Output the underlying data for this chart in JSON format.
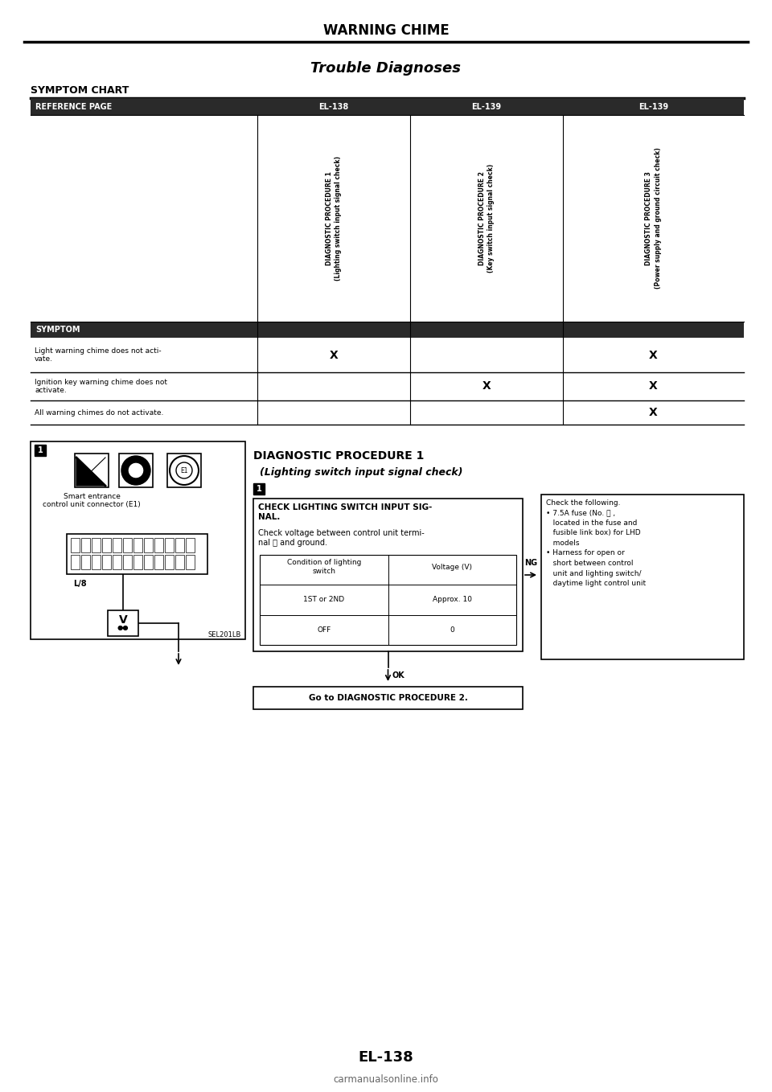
{
  "page_title": "WARNING CHIME",
  "section_title": "Trouble Diagnoses",
  "symptom_chart_label": "SYMPTOM CHART",
  "ref_page_label": "REFERENCE PAGE",
  "ref_pages": [
    "EL-138",
    "EL-139",
    "EL-139"
  ],
  "diag_proc_labels": [
    "DIAGNOSTIC PROCEDURE 1\n(Lighting switch input signal check)",
    "DIAGNOSTIC PROCEDURE 2\n(Key switch input signal check)",
    "DIAGNOSTIC PROCEDURE 3\n(Power supply and ground circuit check)"
  ],
  "symptom_label": "SYMPTOM",
  "symptoms": [
    "Light warning chime does not acti-\nvate.",
    "Ignition key warning chime does not\nactivate.",
    "All warning chimes do not activate."
  ],
  "x_marks": [
    [
      true,
      false,
      true
    ],
    [
      false,
      true,
      true
    ],
    [
      false,
      false,
      true
    ]
  ],
  "page_number": "EL-138",
  "bg_color": "#ffffff",
  "header_bg": "#2a2a2a",
  "table_line_color": "#000000",
  "diag1_title": "DIAGNOSTIC PROCEDURE 1",
  "diag1_subtitle": "(Lighting switch input signal check)",
  "diag1_box1_title": "CHECK LIGHTING SWITCH INPUT SIG-\nNAL.",
  "diag1_box1_body": "Check voltage between control unit termi-\nnal ⓐ and ground.",
  "diag1_table_headers": [
    "Condition of lighting\nswitch",
    "Voltage (V)"
  ],
  "diag1_table_rows": [
    [
      "1ST or 2ND",
      "Approx. 10"
    ],
    [
      "OFF",
      "0"
    ]
  ],
  "diag1_ng_label": "NG",
  "diag1_ok_label": "OK",
  "diag1_ng_box": "Check the following.\n• 7.5A fuse (No. ⓞ ,\n   located in the fuse and\n   fusible link box) for LHD\n   models\n• Harness for open or\n   short between control\n   unit and lighting switch/\n   daytime light control unit",
  "diag1_next": "Go to DIAGNOSTIC PROCEDURE 2.",
  "connector_label": "Smart entrance\ncontrol unit connector (E1)",
  "connector_pin_label": "L/8",
  "connector_ref": "SEL201LB",
  "watermark": "carmanualsonline.info"
}
